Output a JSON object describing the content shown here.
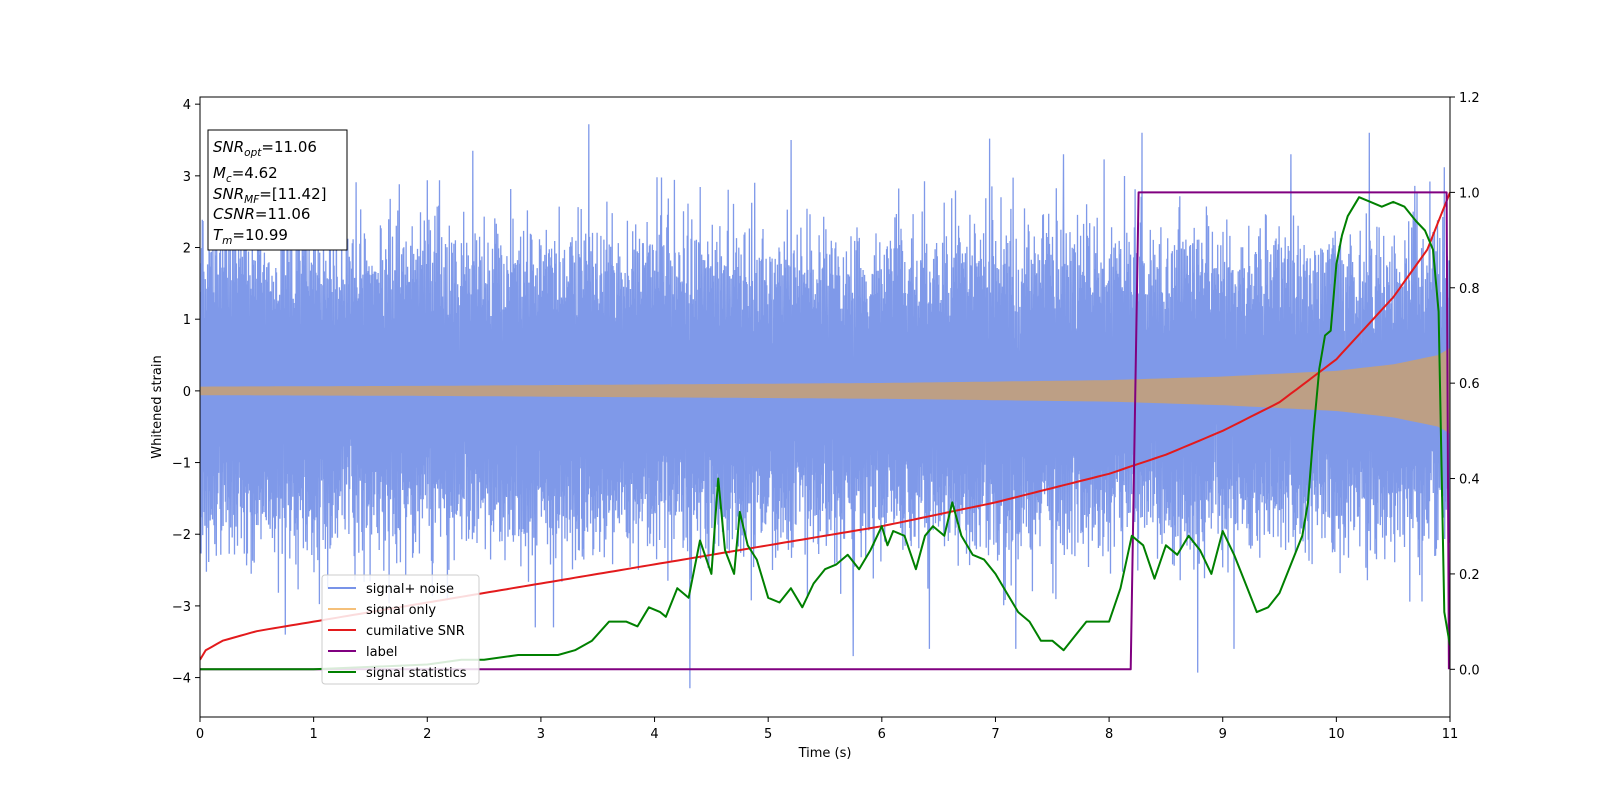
{
  "chart_data": {
    "type": "line",
    "title": "",
    "xlabel": "Time (s)",
    "ylabel": "Whitened strain",
    "xlim": [
      0,
      11
    ],
    "ylim": [
      -4.55,
      4.1
    ],
    "y2lim": [
      -0.1,
      1.2
    ],
    "xticks": [
      "0",
      "1",
      "2",
      "3",
      "4",
      "5",
      "6",
      "7",
      "8",
      "9",
      "10",
      "11"
    ],
    "yticks": [
      "4",
      "3",
      "2",
      "1",
      "0",
      "−1",
      "−2",
      "−3",
      "−4"
    ],
    "y2ticks": [
      "1.2",
      "1.0",
      "0.8",
      "0.6",
      "0.4",
      "0.2",
      "0.0"
    ],
    "grid": false,
    "legend_position": "lower-left",
    "info_box": {
      "snr_opt": {
        "base": "SNR",
        "sub": "opt",
        "rest": "=11.06"
      },
      "mc": {
        "base": "M",
        "sub": "c",
        "rest": "=4.62"
      },
      "snr_mf": {
        "base": "SNR",
        "sub": "MF",
        "rest": "=[11.42]"
      },
      "csnr": {
        "base": "CSNR",
        "sub": "",
        "rest": "=11.06"
      },
      "tm": {
        "base": "T",
        "sub": "m",
        "rest": "=10.99"
      }
    },
    "series": [
      {
        "name": "signal+ noise",
        "axis": "left",
        "color": "#7893e8",
        "description_kind": "noise",
        "envelope_typical": [
          -1.8,
          2.1
        ],
        "peaks": [
          {
            "x": 3.42,
            "y": 3.72
          },
          {
            "x": 4.31,
            "y": -4.15
          },
          {
            "x": 8.29,
            "y": 3.6
          },
          {
            "x": 10.29,
            "y": 3.6
          },
          {
            "x": 8.78,
            "y": -3.93
          },
          {
            "x": 0.75,
            "y": -3.4
          },
          {
            "x": 6.42,
            "y": -3.6
          },
          {
            "x": 7.18,
            "y": -3.6
          },
          {
            "x": 9.1,
            "y": -3.6
          },
          {
            "x": 10.95,
            "y": 3.12
          },
          {
            "x": 0.08,
            "y": 2.45
          },
          {
            "x": 2.95,
            "y": -3.3
          },
          {
            "x": 5.75,
            "y": -3.7
          },
          {
            "x": 6.95,
            "y": 3.52
          },
          {
            "x": 3.11,
            "y": -3.3
          },
          {
            "x": 1.2,
            "y": 3.0
          },
          {
            "x": 2.4,
            "y": 3.35
          },
          {
            "x": 5.2,
            "y": 3.5
          },
          {
            "x": 7.6,
            "y": 3.3
          },
          {
            "x": 9.6,
            "y": 3.3
          }
        ]
      },
      {
        "name": "signal only",
        "axis": "left",
        "color": "#f5c07a",
        "fill_color": "#c4a07a",
        "envelope": {
          "x": [
            0,
            2,
            4,
            6,
            8,
            9,
            10,
            10.5,
            10.9,
            11
          ],
          "amp": [
            0.06,
            0.07,
            0.09,
            0.11,
            0.15,
            0.2,
            0.28,
            0.37,
            0.5,
            0.6
          ]
        }
      },
      {
        "name": "cumilative SNR",
        "axis": "right",
        "color": "#e31a1c",
        "x": [
          0,
          0.05,
          0.2,
          0.5,
          1,
          2,
          3,
          4,
          5,
          6,
          7,
          8,
          8.5,
          9,
          9.5,
          10,
          10.5,
          10.8,
          11
        ],
        "y": [
          0.02,
          0.04,
          0.06,
          0.08,
          0.1,
          0.14,
          0.18,
          0.22,
          0.26,
          0.3,
          0.35,
          0.41,
          0.45,
          0.5,
          0.56,
          0.65,
          0.78,
          0.88,
          1.0
        ]
      },
      {
        "name": "label",
        "axis": "right",
        "color": "#800080",
        "x": [
          0,
          8.19,
          8.26,
          10.97,
          10.99
        ],
        "y": [
          0.0,
          0.0,
          1.0,
          1.0,
          0.0
        ]
      },
      {
        "name": "signal statistics",
        "axis": "right",
        "color": "#008000",
        "x": [
          0,
          1,
          2,
          2.3,
          2.5,
          2.8,
          3.15,
          3.3,
          3.45,
          3.6,
          3.75,
          3.85,
          3.95,
          4.05,
          4.1,
          4.2,
          4.3,
          4.4,
          4.5,
          4.56,
          4.62,
          4.7,
          4.75,
          4.82,
          4.9,
          5.0,
          5.1,
          5.2,
          5.3,
          5.4,
          5.5,
          5.6,
          5.7,
          5.8,
          5.9,
          6.0,
          6.05,
          6.1,
          6.2,
          6.3,
          6.38,
          6.45,
          6.55,
          6.62,
          6.7,
          6.8,
          6.9,
          7.0,
          7.1,
          7.2,
          7.3,
          7.4,
          7.5,
          7.6,
          7.7,
          7.8,
          7.9,
          8.0,
          8.1,
          8.2,
          8.3,
          8.4,
          8.5,
          8.6,
          8.7,
          8.8,
          8.9,
          9.0,
          9.1,
          9.2,
          9.3,
          9.4,
          9.5,
          9.6,
          9.7,
          9.75,
          9.8,
          9.85,
          9.9,
          9.95,
          10.0,
          10.05,
          10.1,
          10.15,
          10.2,
          10.3,
          10.4,
          10.5,
          10.6,
          10.7,
          10.78,
          10.85,
          10.9,
          10.95,
          11.0
        ],
        "y": [
          0.0,
          0.0,
          0.01,
          0.02,
          0.02,
          0.03,
          0.03,
          0.04,
          0.06,
          0.1,
          0.1,
          0.09,
          0.13,
          0.12,
          0.11,
          0.17,
          0.15,
          0.27,
          0.2,
          0.4,
          0.25,
          0.2,
          0.33,
          0.26,
          0.23,
          0.15,
          0.14,
          0.17,
          0.13,
          0.18,
          0.21,
          0.22,
          0.24,
          0.21,
          0.25,
          0.3,
          0.26,
          0.29,
          0.28,
          0.21,
          0.28,
          0.3,
          0.28,
          0.35,
          0.28,
          0.24,
          0.23,
          0.2,
          0.16,
          0.12,
          0.1,
          0.06,
          0.06,
          0.04,
          0.07,
          0.1,
          0.1,
          0.1,
          0.17,
          0.28,
          0.26,
          0.19,
          0.26,
          0.24,
          0.28,
          0.25,
          0.2,
          0.29,
          0.24,
          0.18,
          0.12,
          0.13,
          0.16,
          0.22,
          0.28,
          0.35,
          0.5,
          0.63,
          0.7,
          0.71,
          0.85,
          0.91,
          0.95,
          0.97,
          0.99,
          0.98,
          0.97,
          0.98,
          0.97,
          0.94,
          0.92,
          0.88,
          0.75,
          0.12,
          0.05
        ]
      }
    ]
  }
}
